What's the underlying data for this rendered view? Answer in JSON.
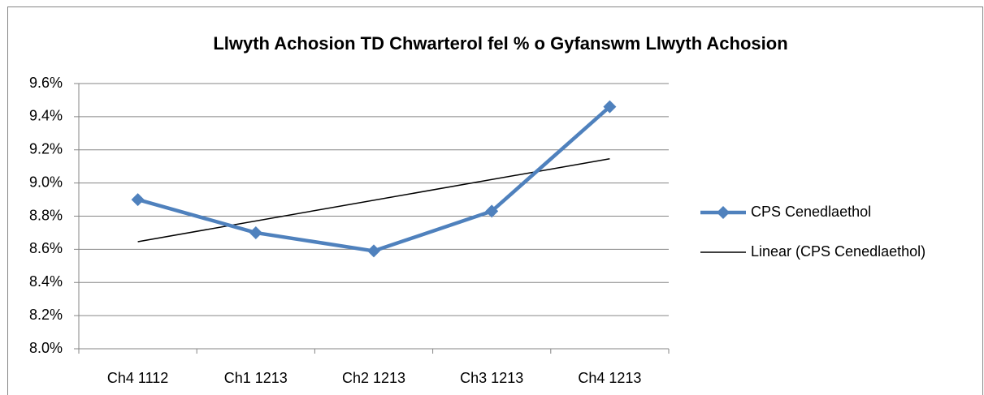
{
  "chart_data": {
    "type": "line",
    "title": "Llwyth Achosion TD Chwarterol fel % o Gyfanswm Llwyth Achosion",
    "categories": [
      "Ch4 1112",
      "Ch1 1213",
      "Ch2 1213",
      "Ch3 1213",
      "Ch4 1213"
    ],
    "series": [
      {
        "name": "CPS Cenedlaethol",
        "color": "#4f81bd",
        "values": [
          8.9,
          8.7,
          8.59,
          8.83,
          9.46
        ],
        "trendline": {
          "type": "linear",
          "name": "Linear (CPS Cenedlaethol)",
          "color": "#000000"
        }
      }
    ],
    "ylim": [
      8.0,
      9.6
    ],
    "yticks": [
      {
        "value": 8.0,
        "label": "8.0%"
      },
      {
        "value": 8.2,
        "label": "8.2%"
      },
      {
        "value": 8.4,
        "label": "8.4%"
      },
      {
        "value": 8.6,
        "label": "8.6%"
      },
      {
        "value": 8.8,
        "label": "8.8%"
      },
      {
        "value": 9.0,
        "label": "9.0%"
      },
      {
        "value": 9.2,
        "label": "9.2%"
      },
      {
        "value": 9.4,
        "label": "9.4%"
      },
      {
        "value": 9.6,
        "label": "9.6%"
      }
    ],
    "grid": true,
    "legend": "right"
  }
}
